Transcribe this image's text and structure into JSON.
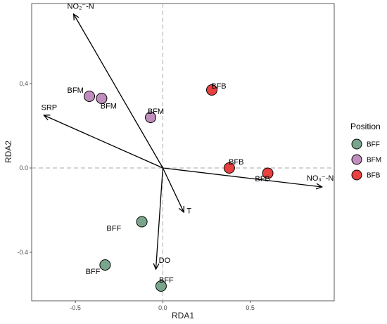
{
  "chart_data": {
    "type": "scatter",
    "title": "",
    "xlabel": "RDA1",
    "ylabel": "RDA2",
    "xlim": [
      -0.75,
      0.98
    ],
    "ylim": [
      -0.63,
      0.78
    ],
    "x_ticks": [
      -0.5,
      0.0,
      0.5
    ],
    "x_tick_labels": [
      "-0.5",
      "0.0",
      "0.5"
    ],
    "y_ticks": [
      -0.4,
      0.0,
      0.4
    ],
    "y_tick_labels": [
      "-0.4",
      "0.0",
      "0.4"
    ],
    "reference_lines": {
      "x": 0,
      "y": 0,
      "style": "dashed"
    },
    "grid": false,
    "points": [
      {
        "group": "BFF",
        "x": -0.12,
        "y": -0.255,
        "label": "BFF",
        "label_dx": -0.16,
        "label_dy": -0.03
      },
      {
        "group": "BFF",
        "x": -0.33,
        "y": -0.46,
        "label": "BFF",
        "label_dx": -0.07,
        "label_dy": -0.03
      },
      {
        "group": "BFF",
        "x": -0.01,
        "y": -0.56,
        "label": "BFF",
        "label_dx": 0.03,
        "label_dy": 0.03
      },
      {
        "group": "BFM",
        "x": -0.42,
        "y": 0.34,
        "label": "BFM",
        "label_dx": -0.08,
        "label_dy": 0.03
      },
      {
        "group": "BFM",
        "x": -0.35,
        "y": 0.33,
        "label": "BFM",
        "label_dx": 0.04,
        "label_dy": -0.035
      },
      {
        "group": "BFM",
        "x": -0.07,
        "y": 0.24,
        "label": "BFM",
        "label_dx": 0.03,
        "label_dy": 0.03
      },
      {
        "group": "BFB",
        "x": 0.28,
        "y": 0.37,
        "label": "BFB",
        "label_dx": 0.04,
        "label_dy": 0.02
      },
      {
        "group": "BFB",
        "x": 0.38,
        "y": 0.0,
        "label": "BFB",
        "label_dx": 0.04,
        "label_dy": 0.03
      },
      {
        "group": "BFB",
        "x": 0.6,
        "y": -0.025,
        "label": "BFB",
        "label_dx": -0.03,
        "label_dy": -0.025
      }
    ],
    "arrows": [
      {
        "label": "NO₂⁻-N",
        "x": -0.51,
        "y": 0.73,
        "label_dx": 0.04,
        "label_dy": 0.025
      },
      {
        "label": "SRP",
        "x": -0.68,
        "y": 0.25,
        "label_dx": 0.03,
        "label_dy": 0.025
      },
      {
        "label": "NO₃⁻-N",
        "x": 0.91,
        "y": -0.09,
        "label_dx": -0.01,
        "label_dy": 0.03
      },
      {
        "label": "T",
        "x": 0.12,
        "y": -0.21,
        "label_dx": 0.03,
        "label_dy": -0.005
      },
      {
        "label": "DO",
        "x": -0.04,
        "y": -0.48,
        "label_dx": 0.05,
        "label_dy": 0.03
      }
    ],
    "legend": {
      "title": "Position",
      "position": "right",
      "entries": [
        {
          "name": "BFF",
          "color": "#7aa58d"
        },
        {
          "name": "BFM",
          "color": "#c08ebd"
        },
        {
          "name": "BFB",
          "color": "#e8413f"
        }
      ]
    }
  }
}
